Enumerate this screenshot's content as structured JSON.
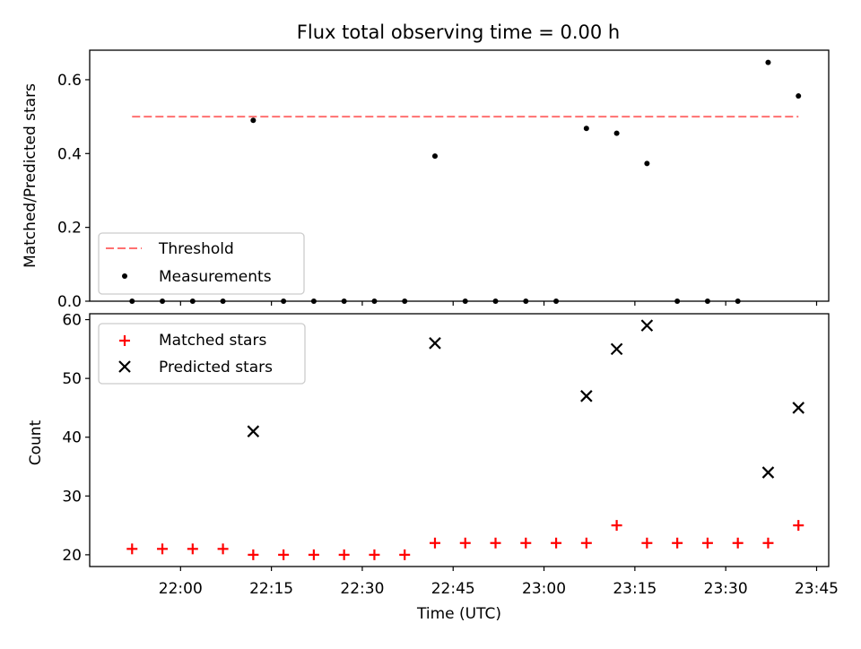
{
  "title": "Flux total observing time = 0.00 h",
  "colors": {
    "threshold": "#ff7070",
    "measurement": "#000000",
    "matched": "#ff0000",
    "predicted": "#000000",
    "legend_border": "#cccccc"
  },
  "chart_data": [
    {
      "type": "scatter",
      "ylabel": "Matched/Predicted stars",
      "ylim": [
        0,
        0.68
      ],
      "yticks": [
        0.0,
        0.2,
        0.4,
        0.6
      ],
      "ytick_labels": [
        "0.0",
        "0.2",
        "0.4",
        "0.6"
      ],
      "grid": false,
      "legend_position": "lower-left",
      "threshold": {
        "name": "Threshold",
        "value": 0.5,
        "x_start": "21:52",
        "x_end": "23:42",
        "style": "dashed"
      },
      "series": [
        {
          "name": "Measurements",
          "marker": "dot",
          "x": [
            "21:52",
            "21:57",
            "22:02",
            "22:07",
            "22:12",
            "22:17",
            "22:22",
            "22:27",
            "22:32",
            "22:37",
            "22:42",
            "22:47",
            "22:52",
            "22:57",
            "23:02",
            "23:07",
            "23:12",
            "23:17",
            "23:22",
            "23:27",
            "23:32",
            "23:37",
            "23:42"
          ],
          "y": [
            0,
            0,
            0,
            0,
            0.49,
            0,
            0,
            0,
            0,
            0,
            0.393,
            0,
            0,
            0,
            0,
            0.468,
            0.455,
            0.373,
            0,
            0,
            0,
            0.647,
            0.556
          ]
        }
      ]
    },
    {
      "type": "scatter",
      "xlabel": "Time (UTC)",
      "ylabel": "Count",
      "xlim": [
        "21:45",
        "23:47"
      ],
      "ylim": [
        18,
        61
      ],
      "xticks": [
        "22:00",
        "22:15",
        "22:30",
        "22:45",
        "23:00",
        "23:15",
        "23:30",
        "23:45"
      ],
      "yticks": [
        20,
        30,
        40,
        50,
        60
      ],
      "ytick_labels": [
        "20",
        "30",
        "40",
        "50",
        "60"
      ],
      "grid": false,
      "legend_position": "upper-left",
      "series": [
        {
          "name": "Matched stars",
          "marker": "plus",
          "x": [
            "21:52",
            "21:57",
            "22:02",
            "22:07",
            "22:12",
            "22:17",
            "22:22",
            "22:27",
            "22:32",
            "22:37",
            "22:42",
            "22:47",
            "22:52",
            "22:57",
            "23:02",
            "23:07",
            "23:12",
            "23:17",
            "23:22",
            "23:27",
            "23:32",
            "23:37",
            "23:42"
          ],
          "y": [
            21,
            21,
            21,
            21,
            20,
            20,
            20,
            20,
            20,
            20,
            22,
            22,
            22,
            22,
            22,
            22,
            25,
            22,
            22,
            22,
            22,
            22,
            25
          ]
        },
        {
          "name": "Predicted stars",
          "marker": "x",
          "x": [
            "22:12",
            "22:42",
            "23:07",
            "23:12",
            "23:17",
            "23:37",
            "23:42"
          ],
          "y": [
            41,
            56,
            47,
            55,
            59,
            34,
            45
          ]
        }
      ]
    }
  ]
}
